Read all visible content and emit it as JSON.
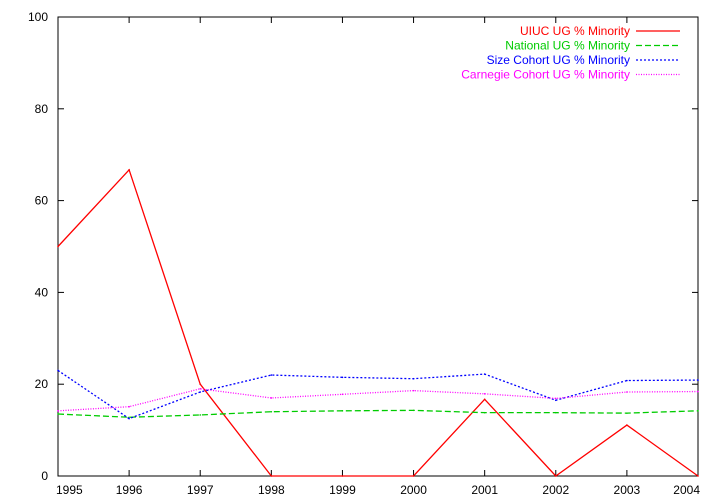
{
  "chart_data": {
    "type": "line",
    "title": "",
    "xlabel": "",
    "ylabel": "",
    "x": [
      1995,
      1996,
      1997,
      1998,
      1999,
      2000,
      2001,
      2002,
      2003,
      2004
    ],
    "xlim": [
      1995,
      2004
    ],
    "ylim": [
      0,
      100
    ],
    "xticks": [
      "1995",
      "1996",
      "1997",
      "1998",
      "1999",
      "2000",
      "2001",
      "2002",
      "2003",
      "2004"
    ],
    "yticks": [
      "0",
      "20",
      "40",
      "60",
      "80",
      "100"
    ],
    "grid": false,
    "legend_position": "top-right",
    "series": [
      {
        "name": "UIUC UG % Minority",
        "color": "#ff0000",
        "dash": "solid",
        "values": [
          50,
          66.7,
          20,
          0,
          0,
          0,
          16.7,
          0,
          11.1,
          0
        ]
      },
      {
        "name": "National UG % Minority",
        "color": "#00cc00",
        "dash": "dashed",
        "values": [
          13.5,
          12.8,
          13.3,
          14.0,
          14.2,
          14.3,
          13.8,
          13.8,
          13.7,
          14.2
        ]
      },
      {
        "name": "Size Cohort UG % Minority",
        "color": "#0000ff",
        "dash": "dotted",
        "values": [
          23.0,
          12.5,
          18.3,
          22.0,
          21.5,
          21.2,
          22.2,
          16.5,
          20.8,
          20.9
        ]
      },
      {
        "name": "Carnegie Cohort UG % Minority",
        "color": "#ff00ff",
        "dash": "fine-dotted",
        "values": [
          14.2,
          15.1,
          19.0,
          17.0,
          17.8,
          18.6,
          17.9,
          16.9,
          18.3,
          18.4
        ]
      }
    ]
  }
}
